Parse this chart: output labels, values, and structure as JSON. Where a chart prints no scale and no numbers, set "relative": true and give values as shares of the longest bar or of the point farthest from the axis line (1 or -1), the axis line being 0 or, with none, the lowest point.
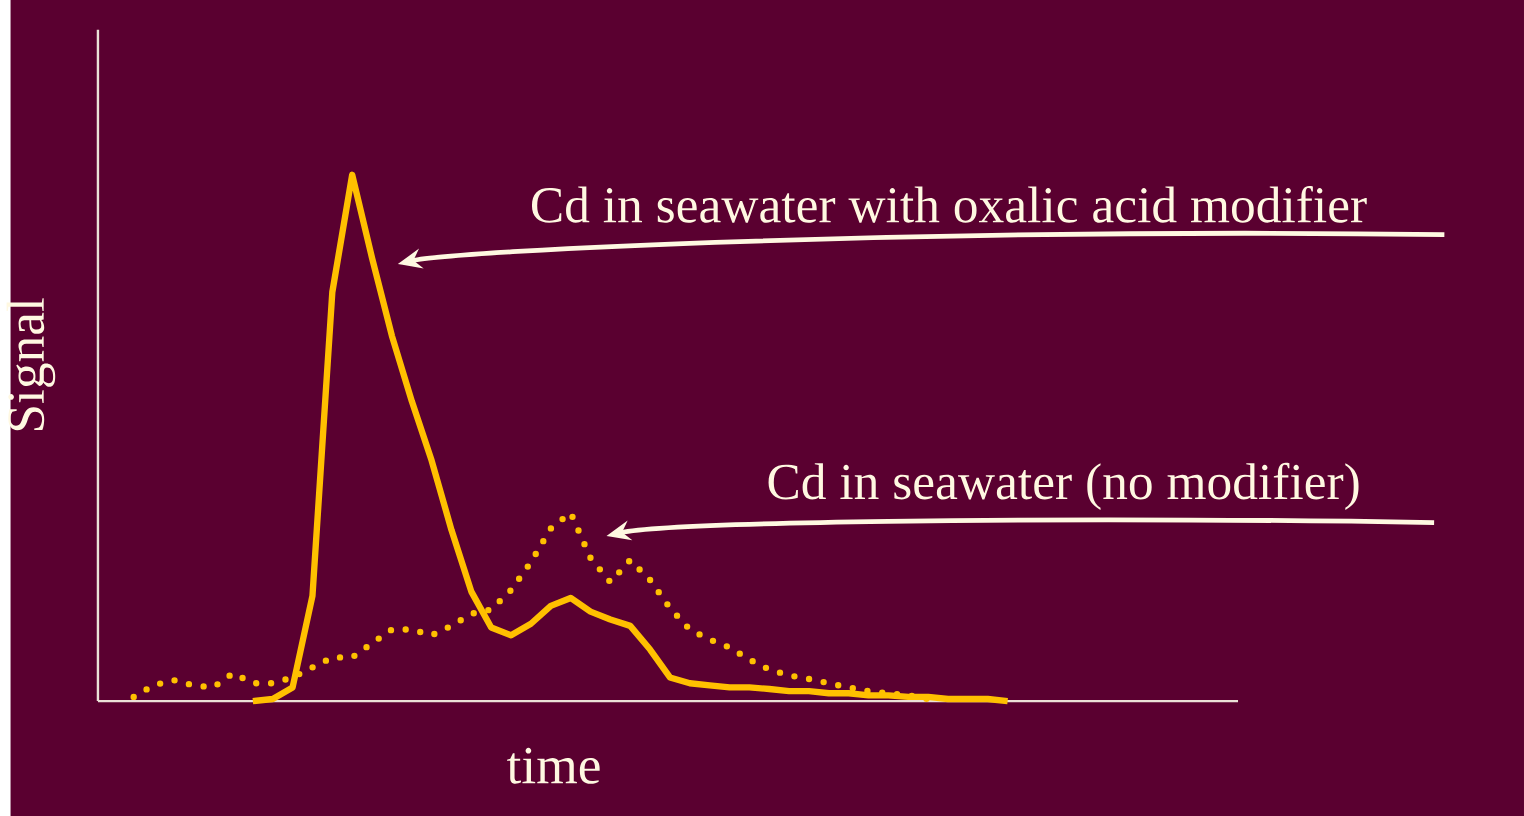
{
  "chart_data": {
    "type": "line",
    "relative": true,
    "xlabel": "time",
    "ylabel": "Signal",
    "categories": [
      null,
      null,
      null,
      null,
      null,
      null,
      null,
      null,
      null,
      null,
      null,
      null,
      null,
      null,
      null,
      null,
      null,
      null,
      null,
      null,
      null,
      null,
      null,
      null,
      null,
      null,
      null,
      null,
      null,
      null,
      null,
      null,
      null,
      null,
      null,
      null,
      null,
      null,
      null,
      null,
      null,
      null,
      null,
      null,
      null
    ],
    "series": [
      {
        "color": "#ffc000",
        "line_style": "solid",
        "values": [
          null,
          null,
          null,
          null,
          null,
          null,
          0.0,
          0.004,
          0.026,
          0.2,
          0.777,
          1.0,
          0.842,
          0.694,
          0.57,
          0.457,
          0.325,
          0.208,
          0.14,
          0.125,
          0.147,
          0.181,
          0.196,
          0.17,
          0.155,
          0.143,
          0.098,
          0.045,
          0.034,
          0.03,
          0.026,
          0.026,
          0.023,
          0.019,
          0.019,
          0.015,
          0.015,
          0.011,
          0.011,
          0.008,
          0.008,
          0.004,
          0.004,
          0.004,
          0.0
        ]
      },
      {
        "color": "#ffc000",
        "line_style": "dotted",
        "values": [
          0.008,
          0.03,
          0.04,
          0.03,
          0.026,
          0.053,
          0.034,
          0.034,
          0.045,
          0.064,
          0.083,
          0.083,
          0.11,
          0.136,
          0.136,
          0.125,
          0.143,
          0.166,
          0.174,
          0.211,
          0.264,
          0.328,
          0.358,
          0.272,
          0.226,
          0.268,
          0.23,
          0.177,
          0.136,
          0.117,
          0.102,
          0.079,
          0.06,
          0.049,
          0.042,
          0.034,
          0.026,
          0.019,
          0.015,
          0.011,
          0.004,
          null,
          null,
          null,
          null
        ]
      }
    ],
    "annotations": [
      "Cd in seawater with oxalic acid modifier",
      "Cd in seawater (no modifier)"
    ]
  }
}
